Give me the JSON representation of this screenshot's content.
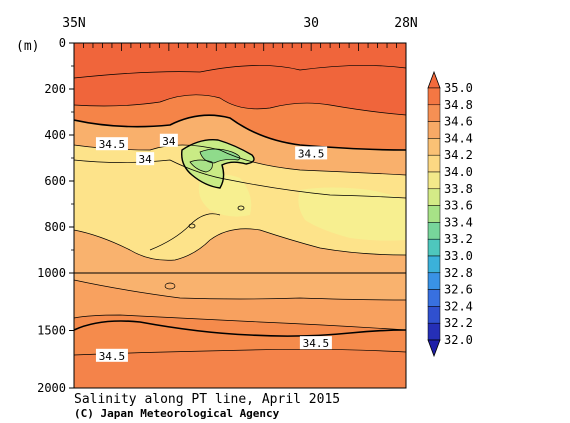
{
  "chart_data": {
    "type": "heatmap",
    "title": "Salinity along PT line, April 2015",
    "credit": "(C) Japan Meteorological Agency",
    "y_unit_label": "(m)",
    "x_ticks": [
      {
        "label": "35N",
        "lat": 35
      },
      {
        "label": "30",
        "lat": 30
      },
      {
        "label": "28N",
        "lat": 28
      }
    ],
    "x_range": [
      35,
      28
    ],
    "y_ticks_upper": [
      0,
      200,
      400,
      600,
      800,
      1000
    ],
    "y_ticks_lower": [
      1500,
      2000
    ],
    "depth_break": 1000,
    "colorbar": {
      "levels": [
        "35.0",
        "34.8",
        "34.6",
        "34.4",
        "34.2",
        "34.0",
        "33.8",
        "33.6",
        "33.4",
        "33.2",
        "33.0",
        "32.8",
        "32.6",
        "32.4",
        "32.2",
        "32.0"
      ],
      "colors": [
        "#f26a3c",
        "#f5834a",
        "#f79c5d",
        "#f9b56e",
        "#fbcd7c",
        "#fde38a",
        "#e9ee8a",
        "#bfe883",
        "#8fdb8b",
        "#5fcfaa",
        "#3dbfd0",
        "#38a3e3",
        "#3a80e8",
        "#3560d8",
        "#2b3fc6",
        "#1f1fa8"
      ]
    },
    "contour_labels": [
      {
        "text": "34.5",
        "lat": 34.2,
        "depth": 440
      },
      {
        "text": "34.5",
        "lat": 30.0,
        "depth": 480
      },
      {
        "text": "34",
        "lat": 33.0,
        "depth": 425
      },
      {
        "text": "34",
        "lat": 33.5,
        "depth": 505
      },
      {
        "text": "34.5",
        "lat": 34.2,
        "depth": 1720
      },
      {
        "text": "34.5",
        "lat": 29.9,
        "depth": 1610
      }
    ]
  }
}
